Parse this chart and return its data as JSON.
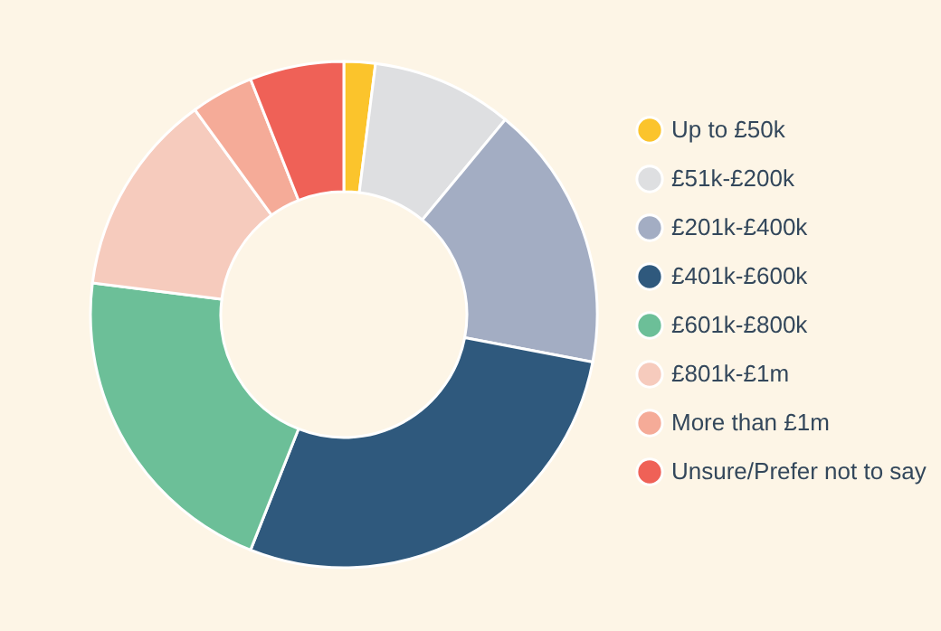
{
  "chart_data": {
    "type": "donut",
    "categories": [
      "Up to £50k",
      "£51k-£200k",
      "£201k-£400k",
      "£401k-£600k",
      "£601k-£800k",
      "£801k-£1m",
      "More than £1m",
      "Unsure/Prefer not to say"
    ],
    "values": [
      2,
      9,
      17,
      28,
      21,
      13,
      4,
      6
    ],
    "colors": [
      "#fbc42c",
      "#dedfe1",
      "#a3adc3",
      "#2f597d",
      "#6cbf98",
      "#f6cbbd",
      "#f5ab98",
      "#ef6157"
    ],
    "legend": "right"
  }
}
